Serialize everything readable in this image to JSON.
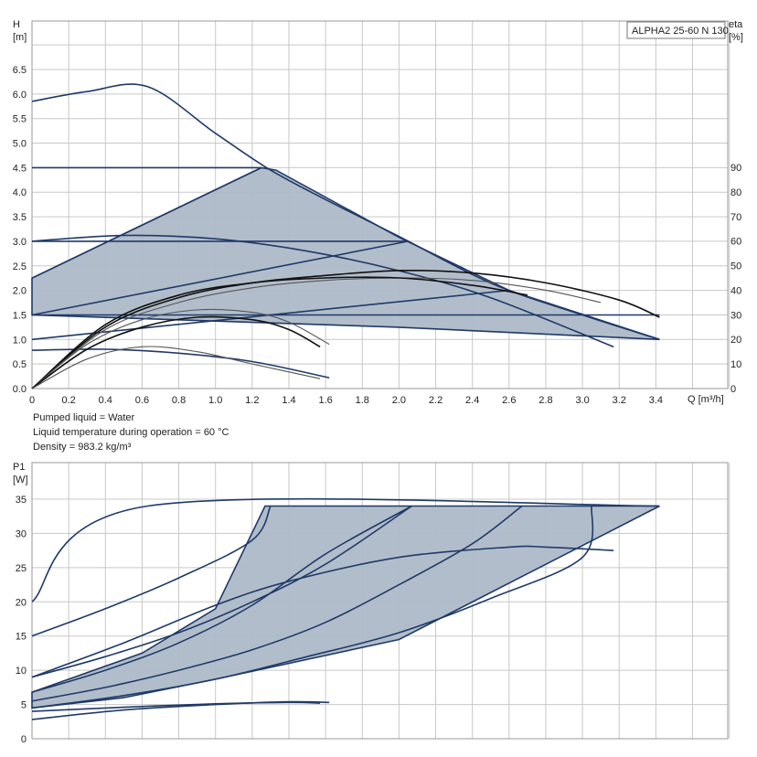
{
  "chart_data": [
    {
      "type": "line",
      "legend_box": "ALPHA2 25-60 N 130",
      "ylabel_top": "H",
      "ylabel_unit": "[m]",
      "y2label_top": "eta",
      "y2label_unit": "[%]",
      "xlabel": "Q [m³/h]",
      "xlim": [
        0,
        3.8
      ],
      "ylim": [
        0,
        6.5
      ],
      "y2lim": [
        0,
        90
      ],
      "grid": true,
      "x_ticks": [
        "0",
        "0.2",
        "0.4",
        "0.6",
        "0.8",
        "1.0",
        "1.2",
        "1.4",
        "1.6",
        "1.8",
        "2.0",
        "2.2",
        "2.4",
        "2.6",
        "2.8",
        "3.0",
        "3.2",
        "3.4"
      ],
      "y_ticks": [
        "0.0",
        "0.5",
        "1.0",
        "1.5",
        "2.0",
        "2.5",
        "3.0",
        "3.5",
        "4.0",
        "4.5",
        "5.0",
        "5.5",
        "6.0",
        "6.5"
      ],
      "y2_ticks": [
        "0",
        "10",
        "20",
        "30",
        "40",
        "50",
        "60",
        "70",
        "80",
        "90"
      ],
      "shaded_region": [
        [
          0,
          2.25
        ],
        [
          1.25,
          4.5
        ],
        [
          1.33,
          4.45
        ],
        [
          2.0,
          3.08
        ],
        [
          2.6,
          2.0
        ],
        [
          3.42,
          1.0
        ],
        [
          2.0,
          1.25
        ],
        [
          0,
          1.5
        ]
      ],
      "head_curves": [
        {
          "points": [
            [
              0,
              5.85
            ],
            [
              0.3,
              6.05
            ],
            [
              0.63,
              6.15
            ],
            [
              1.0,
              5.2
            ],
            [
              1.3,
              4.45
            ],
            [
              1.6,
              3.85
            ],
            [
              2.0,
              3.1
            ],
            [
              2.5,
              2.15
            ],
            [
              3.0,
              1.5
            ],
            [
              3.42,
              1.0
            ]
          ]
        },
        {
          "points": [
            [
              0,
              4.5
            ],
            [
              1.25,
              4.5
            ]
          ]
        },
        {
          "points": [
            [
              0,
              2.25
            ],
            [
              1.25,
              4.5
            ]
          ]
        },
        {
          "points": [
            [
              0,
              3.0
            ],
            [
              2.05,
              3.0
            ]
          ]
        },
        {
          "points": [
            [
              0,
              1.5
            ],
            [
              2.05,
              3.0
            ]
          ]
        },
        {
          "points": [
            [
              0,
              1.5
            ],
            [
              3.42,
              1.5
            ]
          ]
        },
        {
          "points": [
            [
              0,
              1.0
            ],
            [
              2.6,
              2.0
            ]
          ]
        },
        {
          "points": [
            [
              0,
              3.0
            ],
            [
              0.5,
              3.12
            ],
            [
              1.0,
              3.05
            ],
            [
              1.5,
              2.8
            ],
            [
              2.0,
              2.4
            ],
            [
              2.5,
              1.85
            ],
            [
              3.17,
              0.85
            ]
          ]
        },
        {
          "points": [
            [
              0,
              0.78
            ],
            [
              0.4,
              0.8
            ],
            [
              0.8,
              0.72
            ],
            [
              1.2,
              0.55
            ],
            [
              1.62,
              0.22
            ]
          ]
        }
      ],
      "efficiency_curves": [
        {
          "points": [
            [
              0,
              0
            ],
            [
              0.4,
              25
            ],
            [
              0.8,
              37
            ],
            [
              1.2,
              43
            ],
            [
              1.6,
              46
            ],
            [
              2.0,
              48
            ],
            [
              2.4,
              47
            ],
            [
              2.8,
              43
            ],
            [
              3.2,
              36
            ],
            [
              3.42,
              29
            ]
          ]
        },
        {
          "points": [
            [
              0,
              0
            ],
            [
              0.4,
              24
            ],
            [
              0.8,
              35
            ],
            [
              1.2,
              41
            ],
            [
              1.6,
              44
            ],
            [
              2.0,
              45
            ],
            [
              2.4,
              44
            ],
            [
              2.8,
              40
            ],
            [
              3.1,
              35
            ]
          ]
        },
        {
          "points": [
            [
              0,
              0
            ],
            [
              0.4,
              26
            ],
            [
              0.8,
              38
            ],
            [
              1.2,
              43
            ],
            [
              1.6,
              45
            ],
            [
              2.0,
              45
            ],
            [
              2.4,
              42
            ],
            [
              2.7,
              38
            ]
          ]
        },
        {
          "points": [
            [
              0,
              0
            ],
            [
              0.3,
              18
            ],
            [
              0.6,
              28
            ],
            [
              0.9,
              32
            ],
            [
              1.2,
              31
            ],
            [
              1.4,
              27
            ],
            [
              1.62,
              18
            ]
          ]
        },
        {
          "points": [
            [
              0,
              0
            ],
            [
              0.3,
              16
            ],
            [
              0.6,
              25
            ],
            [
              0.9,
              29
            ],
            [
              1.2,
              28
            ],
            [
              1.4,
              24
            ],
            [
              1.57,
              17
            ]
          ]
        },
        {
          "points": [
            [
              0,
              0
            ],
            [
              0.3,
              12
            ],
            [
              0.6,
              17
            ],
            [
              0.9,
              15
            ],
            [
              1.2,
              10
            ],
            [
              1.57,
              4
            ]
          ]
        }
      ]
    },
    {
      "type": "line",
      "ylabel_top": "P1",
      "ylabel_unit": "[W]",
      "xlim": [
        0,
        3.8
      ],
      "ylim": [
        0,
        35
      ],
      "grid": true,
      "y_ticks": [
        "0",
        "5",
        "10",
        "15",
        "20",
        "25",
        "30",
        "35"
      ],
      "shaded_region": [
        [
          0,
          6.8
        ],
        [
          0.6,
          12.5
        ],
        [
          1.0,
          19
        ],
        [
          1.27,
          34
        ],
        [
          3.42,
          34
        ],
        [
          2.0,
          14.5
        ],
        [
          1.0,
          8.7
        ],
        [
          0.5,
          6.0
        ],
        [
          0,
          4.5
        ]
      ],
      "power_curves": [
        {
          "points": [
            [
              0,
              20
            ],
            [
              0.63,
              34
            ],
            [
              3.42,
              34
            ]
          ]
        },
        {
          "points": [
            [
              0,
              15
            ],
            [
              0.4,
              19
            ],
            [
              0.8,
              23.5
            ],
            [
              1.2,
              29
            ],
            [
              1.3,
              34
            ]
          ]
        },
        {
          "points": [
            [
              0,
              9
            ],
            [
              0.4,
              12
            ],
            [
              0.8,
              15.5
            ],
            [
              1.2,
              20
            ],
            [
              1.6,
              25.5
            ],
            [
              2.07,
              34
            ]
          ]
        },
        {
          "points": [
            [
              0,
              9
            ],
            [
              0.5,
              14
            ],
            [
              1.0,
              19.5
            ],
            [
              1.4,
              23
            ],
            [
              2.0,
              26.5
            ],
            [
              2.6,
              28
            ],
            [
              2.8,
              28
            ],
            [
              3.17,
              27.5
            ]
          ]
        },
        {
          "points": [
            [
              0,
              6.8
            ],
            [
              0.4,
              10
            ],
            [
              0.8,
              14
            ],
            [
              1.2,
              19.5
            ],
            [
              1.6,
              27
            ],
            [
              2.07,
              34
            ]
          ]
        },
        {
          "points": [
            [
              0,
              5.5
            ],
            [
              0.4,
              7.5
            ],
            [
              0.8,
              10
            ],
            [
              1.2,
              13
            ],
            [
              1.6,
              17
            ],
            [
              2.0,
              22.5
            ],
            [
              2.4,
              28.5
            ],
            [
              2.67,
              34
            ]
          ]
        },
        {
          "points": [
            [
              0,
              4.5
            ],
            [
              0.5,
              6.3
            ],
            [
              1.0,
              8.7
            ],
            [
              1.5,
              12
            ],
            [
              2.0,
              15.5
            ],
            [
              2.5,
              20.5
            ],
            [
              3.0,
              26.5
            ],
            [
              3.05,
              34
            ]
          ]
        },
        {
          "points": [
            [
              0,
              2.8
            ],
            [
              0.5,
              4.2
            ],
            [
              1.0,
              5.0
            ],
            [
              1.4,
              5.4
            ],
            [
              1.62,
              5.3
            ]
          ]
        },
        {
          "points": [
            [
              0,
              4.0
            ],
            [
              0.5,
              4.6
            ],
            [
              1.0,
              5.1
            ],
            [
              1.4,
              5.3
            ],
            [
              1.57,
              5.2
            ]
          ]
        }
      ]
    }
  ],
  "info": {
    "line1": "Pumped liquid = Water",
    "line2": "Liquid temperature during operation = 60 °C",
    "line3": "Density = 983.2 kg/m³"
  }
}
